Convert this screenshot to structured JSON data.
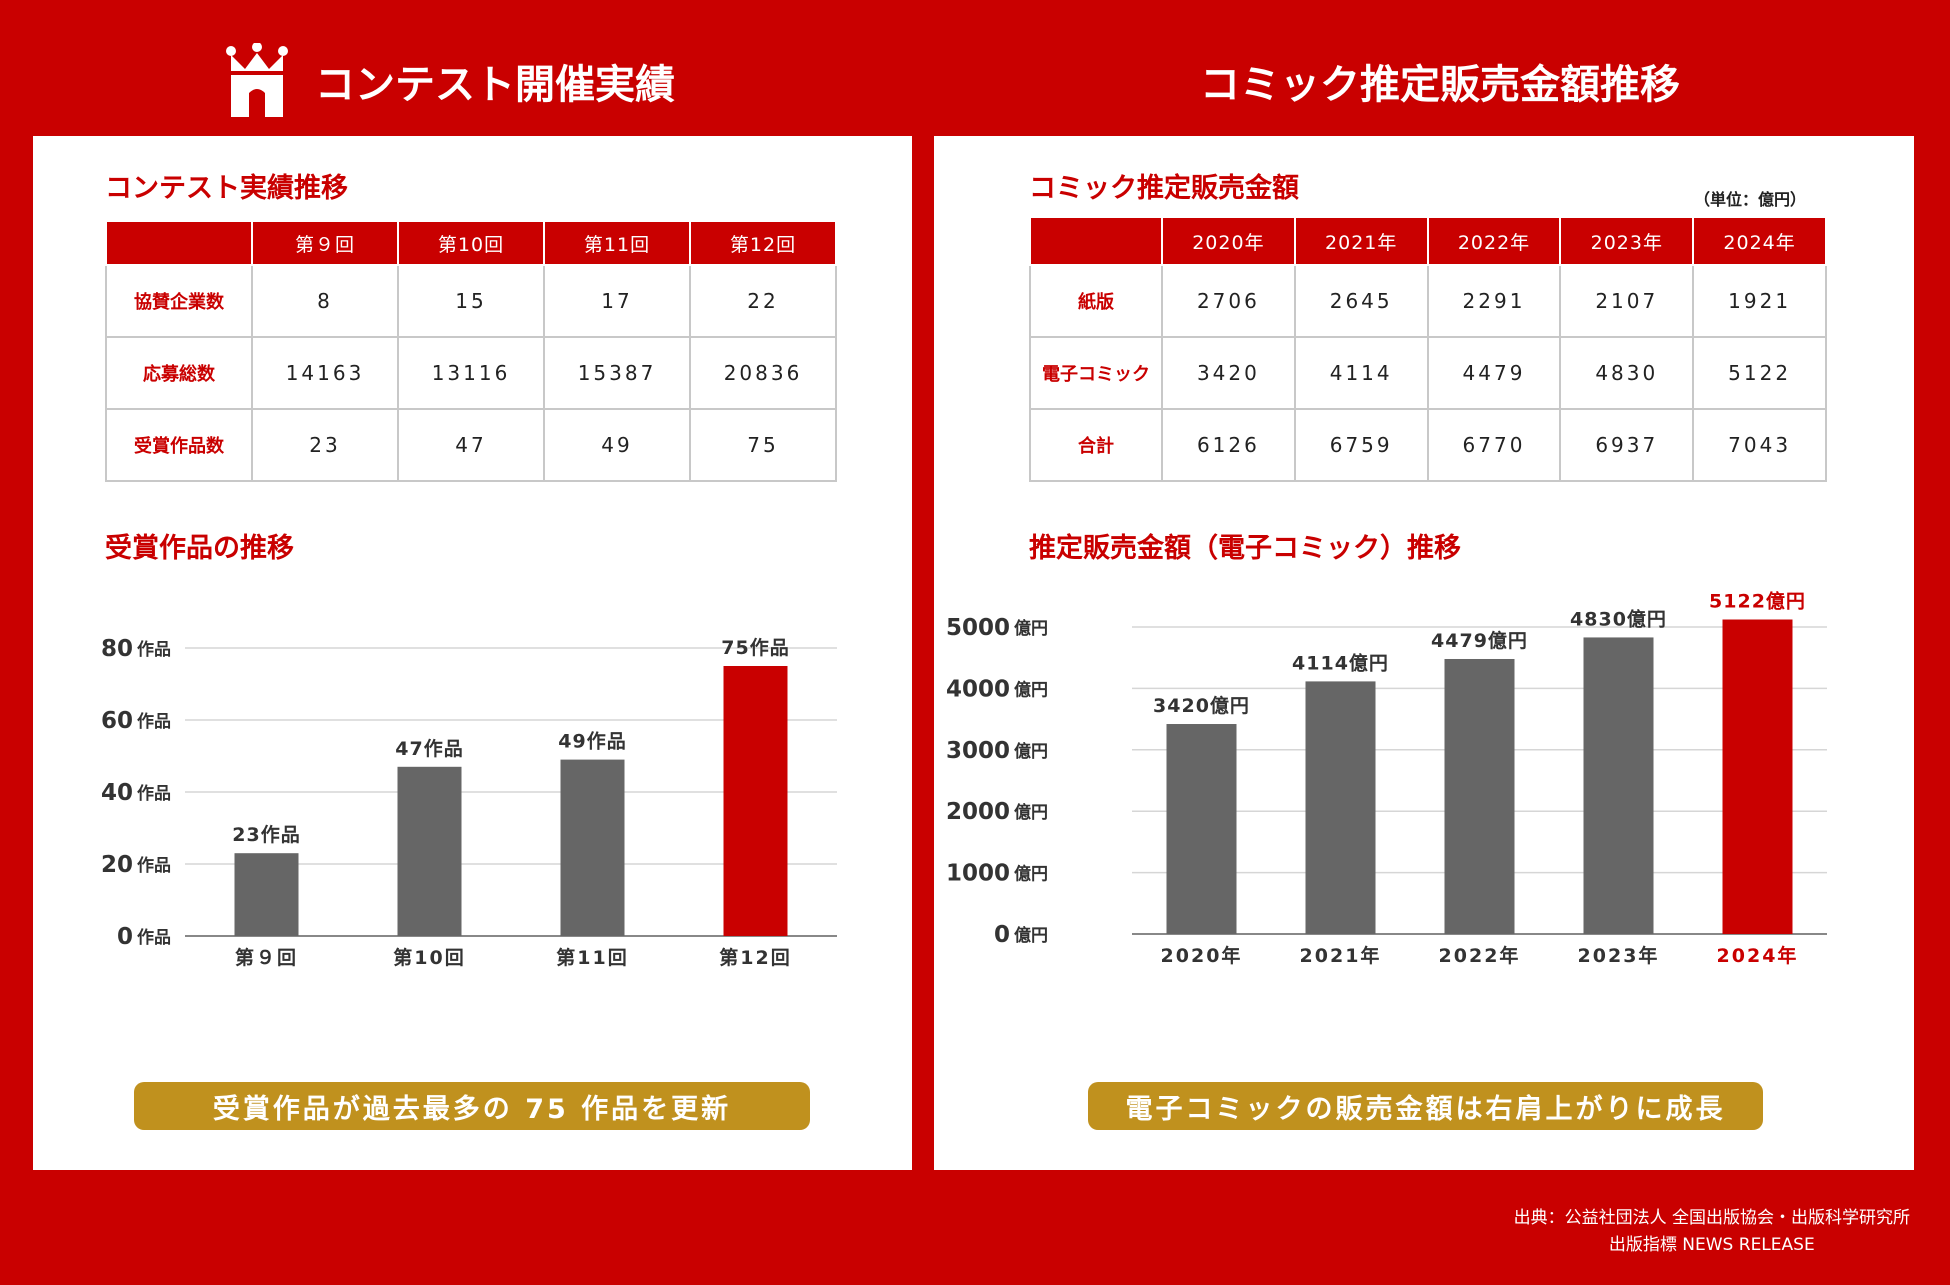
{
  "header": {
    "left_title": "コンテスト開催実績",
    "right_title": "コミック推定販売金額推移"
  },
  "contest_table": {
    "title": "コンテスト実績推移",
    "columns": [
      "第９回",
      "第10回",
      "第11回",
      "第12回"
    ],
    "rows": [
      {
        "label": "協賛企業数",
        "values": [
          "8",
          "15",
          "17",
          "22"
        ]
      },
      {
        "label": "応募総数",
        "values": [
          "14163",
          "13116",
          "15387",
          "20836"
        ]
      },
      {
        "label": "受賞作品数",
        "values": [
          "23",
          "47",
          "49",
          "75"
        ]
      }
    ]
  },
  "sales_table": {
    "title": "コミック推定販売金額",
    "unit": "（単位：億円）",
    "columns": [
      "2020年",
      "2021年",
      "2022年",
      "2023年",
      "2024年"
    ],
    "rows": [
      {
        "label": "紙版",
        "values": [
          "2706",
          "2645",
          "2291",
          "2107",
          "1921"
        ]
      },
      {
        "label": "電子コミック",
        "values": [
          "3420",
          "4114",
          "4479",
          "4830",
          "5122"
        ]
      },
      {
        "label": "合計",
        "values": [
          "6126",
          "6759",
          "6770",
          "6937",
          "7043"
        ]
      }
    ]
  },
  "banners": {
    "left": "受賞作品が過去最多の 75 作品を更新",
    "right": "電子コミックの販売金額は右肩上がりに成長"
  },
  "source": {
    "line1": "出典：公益社団法人 全国出版協会・出版科学研究所",
    "line2": "出版指標 NEWS RELEASE"
  },
  "colors": {
    "brand_red": "#c90000",
    "bar_gray": "#666666",
    "banner_gold": "#c0911e"
  },
  "chart_data": [
    {
      "type": "bar",
      "title": "受賞作品の推移",
      "categories": [
        "第９回",
        "第10回",
        "第11回",
        "第12回"
      ],
      "values": [
        23,
        47,
        49,
        75
      ],
      "value_labels": [
        "23作品",
        "47作品",
        "49作品",
        "75作品"
      ],
      "highlight_index": 3,
      "yticks": [
        0,
        20,
        40,
        60,
        80
      ],
      "ytick_unit": "作品",
      "ylim": [
        0,
        80
      ]
    },
    {
      "type": "bar",
      "title": "推定販売金額（電子コミック）推移",
      "categories": [
        "2020年",
        "2021年",
        "2022年",
        "2023年",
        "2024年"
      ],
      "values": [
        3420,
        4114,
        4479,
        4830,
        5122
      ],
      "value_labels": [
        "3420億円",
        "4114億円",
        "4479億円",
        "4830億円",
        "5122億円"
      ],
      "highlight_index": 4,
      "yticks": [
        0,
        1000,
        2000,
        3000,
        4000,
        5000
      ],
      "ytick_unit": "億円",
      "ylim": [
        0,
        5000
      ]
    }
  ]
}
